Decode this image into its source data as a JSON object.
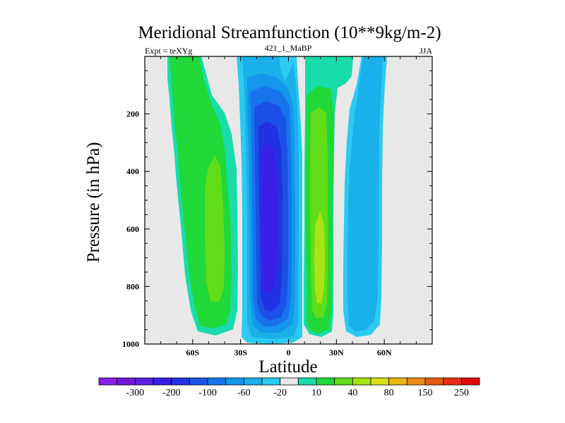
{
  "chart_data": {
    "type": "filled-contour",
    "title": "Meridional Streamfunction (10**9kg/m-2)",
    "subtitle_left": "Expt = teXYg",
    "subtitle_center": "421_1_MaBP",
    "subtitle_right": "JJA",
    "xlabel": "Latitude",
    "ylabel": "Pressure (in hPa)",
    "x_ticks": [
      {
        "value": -60,
        "label": "60S"
      },
      {
        "value": -30,
        "label": "30S"
      },
      {
        "value": 0,
        "label": "0"
      },
      {
        "value": 30,
        "label": "30N"
      },
      {
        "value": 60,
        "label": "60N"
      }
    ],
    "y_ticks": [
      {
        "value": 200,
        "label": "200"
      },
      {
        "value": 400,
        "label": "400"
      },
      {
        "value": 600,
        "label": "600"
      },
      {
        "value": 800,
        "label": "800"
      },
      {
        "value": 1000,
        "label": "1000"
      }
    ],
    "xlim": [
      -90,
      90
    ],
    "ylim": [
      1000,
      0
    ],
    "y_inverted": true,
    "background_color": "#e8e8e8",
    "colorbar": {
      "orientation": "horizontal",
      "location": "bottom",
      "colors": [
        "#8a1ee6",
        "#6e18d8",
        "#5a1ee0",
        "#3a1ee6",
        "#2232e2",
        "#1a52e8",
        "#1874ec",
        "#1496ec",
        "#1ab0ea",
        "#2ccaf0",
        "#e8e8e8",
        "#18dcaa",
        "#20d838",
        "#60dc18",
        "#a8e414",
        "#dce014",
        "#e8b814",
        "#e88a14",
        "#e85a14",
        "#e82e14",
        "#e00a0a"
      ],
      "labels": [
        {
          "after_index": 1,
          "label": "-300"
        },
        {
          "after_index": 3,
          "label": "-200"
        },
        {
          "after_index": 5,
          "label": "-100"
        },
        {
          "after_index": 7,
          "label": "-60"
        },
        {
          "after_index": 9,
          "label": "-20"
        },
        {
          "after_index": 11,
          "label": "10"
        },
        {
          "after_index": 13,
          "label": "40"
        },
        {
          "after_index": 15,
          "label": "80"
        },
        {
          "after_index": 17,
          "label": "150"
        },
        {
          "after_index": 19,
          "label": "250"
        }
      ]
    },
    "features": [
      {
        "name": "southern-subtropical-positive-cell",
        "lat_range": [
          -75,
          -37
        ],
        "pressure_range": [
          0,
          990
        ],
        "max_band": "40-60",
        "core_lat": -50,
        "core_pressure": [
          360,
          850
        ]
      },
      {
        "name": "tropical-negative-cell",
        "lat_range": [
          -29,
          2
        ],
        "pressure_range": [
          0,
          1000
        ],
        "min_band": "-200 to -100",
        "core_lat": -14,
        "core_pressure": [
          300,
          940
        ]
      },
      {
        "name": "northern-tropical-positive-cell",
        "lat_range": [
          6,
          27
        ],
        "pressure_range": [
          80,
          990
        ],
        "max_band": "60-80",
        "core_lat": 18,
        "core_pressure": [
          550,
          860
        ]
      },
      {
        "name": "northern-midlatitude-negative-cell",
        "lat_range": [
          34,
          60
        ],
        "pressure_range": [
          0,
          990
        ],
        "min_band": "-60 to -20",
        "core_lat": 45,
        "core_pressure": [
          100,
          950
        ]
      }
    ]
  }
}
